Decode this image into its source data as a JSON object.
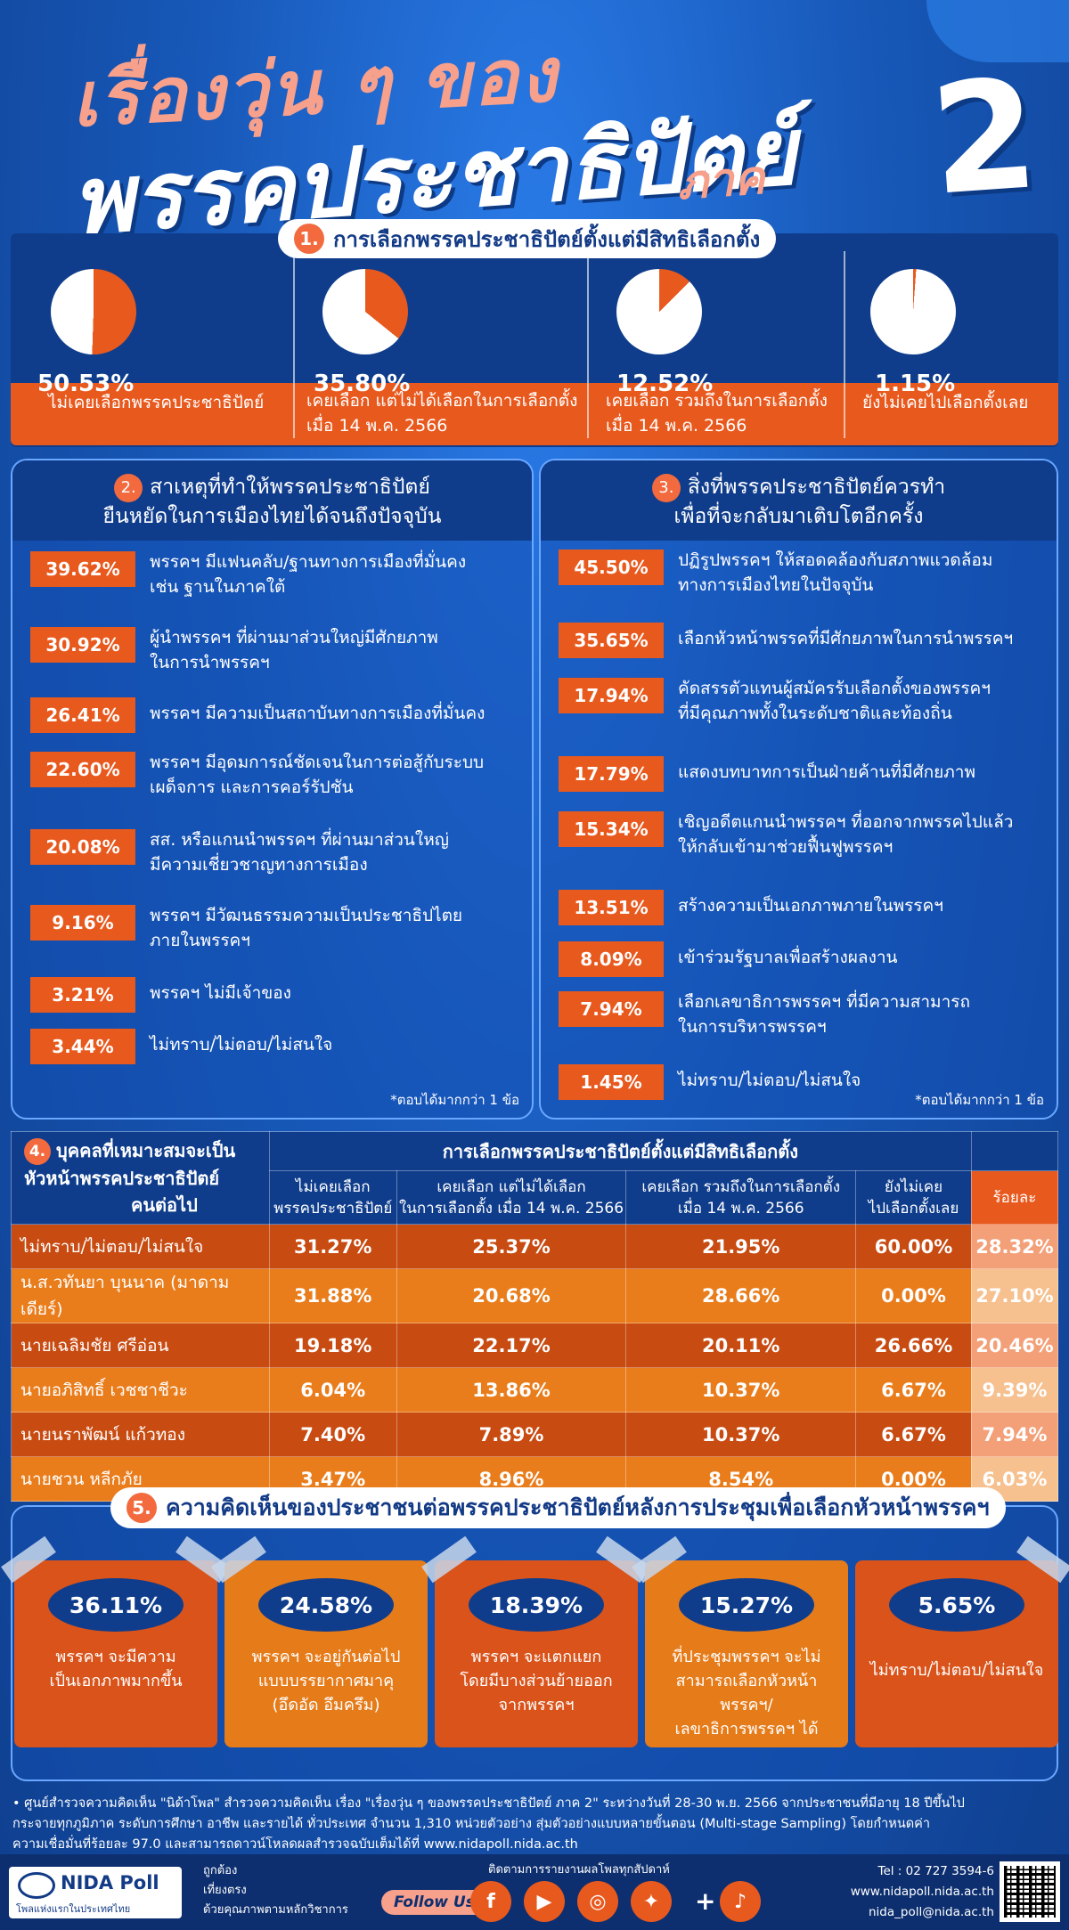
{
  "title": {
    "line1": "เรื่องวุ่น ๆ ของ",
    "line2": "พรรคประชาธิปัตย์",
    "line3": "ภาค",
    "number": "2"
  },
  "colors": {
    "accent": "#e8591e",
    "navy": "#0f3d8c",
    "blue": "#1b5fc0",
    "pink": "#f7a08c"
  },
  "s1": {
    "num": "1.",
    "title": "การเลือกพรรคประชาธิปัตย์ตั้งแต่มีสิทธิเลือกตั้ง",
    "items": [
      {
        "pct": "50.53%",
        "value": 50.53,
        "label": "ไม่เคยเลือกพรรคประชาธิปัตย์",
        "label2": ""
      },
      {
        "pct": "35.80%",
        "value": 35.8,
        "label": "เคยเลือก แต่ไม่ได้เลือกในการเลือกตั้ง",
        "label2": "เมื่อ 14 พ.ค. 2566"
      },
      {
        "pct": "12.52%",
        "value": 12.52,
        "label": "เคยเลือก รวมถึงในการเลือกตั้ง",
        "label2": "เมื่อ 14 พ.ค. 2566"
      },
      {
        "pct": "1.15%",
        "value": 1.15,
        "label": "ยังไม่เคยไปเลือกตั้งเลย",
        "label2": ""
      }
    ]
  },
  "s2": {
    "num": "2.",
    "title1": "สาเหตุที่ทำให้พรรคประชาธิปัตย์",
    "title2": "ยืนหยัดในการเมืองไทยได้จนถึงปัจจุบัน",
    "note": "*ตอบได้มากกว่า 1 ข้อ",
    "items": [
      {
        "pct": "39.62%",
        "l1": "พรรคฯ มีแฟนคลับ/ฐานทางการเมืองที่มั่นคง",
        "l2": "เช่น ฐานในภาคใต้"
      },
      {
        "pct": "30.92%",
        "l1": "ผู้นำพรรคฯ ที่ผ่านมาส่วนใหญ่มีศักยภาพ",
        "l2": "ในการนำพรรคฯ"
      },
      {
        "pct": "26.41%",
        "l1": "พรรคฯ มีความเป็นสถาบันทางการเมืองที่มั่นคง",
        "l2": ""
      },
      {
        "pct": "22.60%",
        "l1": "พรรคฯ มีอุดมการณ์ชัดเจนในการต่อสู้กับระบบ",
        "l2": "เผด็จการ และการคอร์รัปชัน"
      },
      {
        "pct": "20.08%",
        "l1": "สส. หรือแกนนำพรรคฯ ที่ผ่านมาส่วนใหญ่",
        "l2": "มีความเชี่ยวชาญทางการเมือง"
      },
      {
        "pct": "9.16%",
        "l1": "พรรคฯ มีวัฒนธรรมความเป็นประชาธิปไตย",
        "l2": "ภายในพรรคฯ"
      },
      {
        "pct": "3.21%",
        "l1": "พรรคฯ ไม่มีเจ้าของ",
        "l2": ""
      },
      {
        "pct": "3.44%",
        "l1": "ไม่ทราบ/ไม่ตอบ/ไม่สนใจ",
        "l2": ""
      }
    ]
  },
  "s3": {
    "num": "3.",
    "title1": "สิ่งที่พรรคประชาธิปัตย์ควรทำ",
    "title2": "เพื่อที่จะกลับมาเติบโตอีกครั้ง",
    "note": "*ตอบได้มากกว่า 1 ข้อ",
    "items": [
      {
        "pct": "45.50%",
        "l1": "ปฏิรูปพรรคฯ ให้สอดคล้องกับสภาพแวดล้อม",
        "l2": "ทางการเมืองไทยในปัจจุบัน"
      },
      {
        "pct": "35.65%",
        "l1": "เลือกหัวหน้าพรรคที่มีศักยภาพในการนำพรรคฯ",
        "l2": ""
      },
      {
        "pct": "17.94%",
        "l1": "คัดสรรตัวแทนผู้สมัครรับเลือกตั้งของพรรคฯ",
        "l2": "ที่มีคุณภาพทั้งในระดับชาติและท้องถิ่น"
      },
      {
        "pct": "17.79%",
        "l1": "แสดงบทบาทการเป็นฝ่ายค้านที่มีศักยภาพ",
        "l2": ""
      },
      {
        "pct": "15.34%",
        "l1": "เชิญอดีตแกนนำพรรคฯ ที่ออกจากพรรคไปแล้ว",
        "l2": "ให้กลับเข้ามาช่วยฟื้นฟูพรรคฯ"
      },
      {
        "pct": "13.51%",
        "l1": "สร้างความเป็นเอกภาพภายในพรรคฯ",
        "l2": ""
      },
      {
        "pct": "8.09%",
        "l1": "เข้าร่วมรัฐบาลเพื่อสร้างผลงาน",
        "l2": ""
      },
      {
        "pct": "7.94%",
        "l1": "เลือกเลขาธิการพรรคฯ ที่มีความสามารถ",
        "l2": "ในการบริหารพรรคฯ"
      },
      {
        "pct": "1.45%",
        "l1": "ไม่ทราบ/ไม่ตอบ/ไม่สนใจ",
        "l2": ""
      }
    ]
  },
  "s4": {
    "num": "4.",
    "corner1": "บุคคลที่เหมาะสมจะเป็น",
    "corner2": "หัวหน้าพรรคประชาธิปัตย์",
    "corner3": "คนต่อไป",
    "group": "การเลือกพรรคประชาธิปัตย์ตั้งแต่มีสิทธิเลือกตั้ง",
    "cols": [
      {
        "l1": "ไม่เคยเลือก",
        "l2": "พรรคประชาธิปัตย์"
      },
      {
        "l1": "เคยเลือก แต่ไม่ได้เลือก",
        "l2": "ในการเลือกตั้ง เมื่อ 14 พ.ค. 2566"
      },
      {
        "l1": "เคยเลือก รวมถึงในการเลือกตั้ง",
        "l2": "เมื่อ 14 พ.ค. 2566"
      },
      {
        "l1": "ยังไม่เคย",
        "l2": "ไปเลือกตั้งเลย"
      }
    ],
    "total_label": "ร้อยละ",
    "rows": [
      {
        "name": "ไม่ทราบ/ไม่ตอบ/ไม่สนใจ",
        "v": [
          "31.27%",
          "25.37%",
          "21.95%",
          "60.00%",
          "28.32%"
        ]
      },
      {
        "name": "น.ส.วทันยา บุนนาค (มาดามเดียร์)",
        "v": [
          "31.88%",
          "20.68%",
          "28.66%",
          "0.00%",
          "27.10%"
        ]
      },
      {
        "name": "นายเฉลิมชัย ศรีอ่อน",
        "v": [
          "19.18%",
          "22.17%",
          "20.11%",
          "26.66%",
          "20.46%"
        ]
      },
      {
        "name": "นายอภิสิทธิ์ เวชชาชีวะ",
        "v": [
          "6.04%",
          "13.86%",
          "10.37%",
          "6.67%",
          "9.39%"
        ]
      },
      {
        "name": "นายนราพัฒน์ แก้วทอง",
        "v": [
          "7.40%",
          "7.89%",
          "10.37%",
          "6.67%",
          "7.94%"
        ]
      },
      {
        "name": "นายชวน หลีกภัย",
        "v": [
          "3.47%",
          "8.96%",
          "8.54%",
          "0.00%",
          "6.03%"
        ]
      }
    ]
  },
  "s5": {
    "num": "5.",
    "title": "ความคิดเห็นของประชาชนต่อพรรคประชาธิปัตย์หลังการประชุมเพื่อเลือกหัวหน้าพรรคฯ",
    "cards": [
      {
        "pct": "36.11%",
        "l1": "พรรคฯ จะมีความ",
        "l2": "เป็นเอกภาพมากขึ้น",
        "l3": ""
      },
      {
        "pct": "24.58%",
        "l1": "พรรคฯ จะอยู่กันต่อไป",
        "l2": "แบบบรรยากาศมาคุ",
        "l3": "(อึดอัด อึมครึม)"
      },
      {
        "pct": "18.39%",
        "l1": "พรรคฯ จะแตกแยก",
        "l2": "โดยมีบางส่วนย้ายออก",
        "l3": "จากพรรคฯ"
      },
      {
        "pct": "15.27%",
        "l1": "ที่ประชุมพรรคฯ จะไม่",
        "l2": "สามารถเลือกหัวหน้าพรรคฯ/",
        "l3": "เลขาธิการพรรคฯ ได้"
      },
      {
        "pct": "5.65%",
        "l1": "ไม่ทราบ/ไม่ตอบ/ไม่สนใจ",
        "l2": "",
        "l3": ""
      }
    ]
  },
  "footnote": {
    "l1": "• ศูนย์สำรวจความคิดเห็น \"นิด้าโพล\" สำรวจความคิดเห็น เรื่อง \"เรื่องวุ่น ๆ ของพรรคประชาธิปัตย์ ภาค 2\" ระหว่างวันที่ 28-30 พ.ย. 2566 จากประชาชนที่มีอายุ 18 ปีขึ้นไป",
    "l2": "กระจายทุกภูมิภาค ระดับการศึกษา อาชีพ และรายได้ ทั่วประเทศ จำนวน 1,310 หน่วยตัวอย่าง สุ่มตัวอย่างแบบหลายขั้นตอน (Multi-stage Sampling) โดยกำหนดค่า",
    "l3": "ความเชื่อมั่นที่ร้อยละ 97.0 และสามารถดาวน์โหลดผลสำรวจฉบับเต็มได้ที่ www.nidapoll.nida.ac.th"
  },
  "footer": {
    "logo": "NIDA Poll",
    "tagline": "โพลแห่งแรกในประเทศไทย",
    "slogan1": "ถูกต้อง",
    "slogan2": "เที่ยงตรง",
    "slogan3": "ด้วยคุณภาพตามหลักวิชาการ",
    "follow": "Follow Us",
    "follow_text": "ติดตามการรายงานผลโพลทุกสัปดาห์",
    "social": [
      {
        "icon": "facebook-icon",
        "glyph": "f"
      },
      {
        "icon": "youtube-icon",
        "glyph": "▶"
      },
      {
        "icon": "instagram-icon",
        "glyph": "◎"
      },
      {
        "icon": "twitter-icon",
        "glyph": "✦"
      },
      {
        "icon": "tiktok-icon",
        "glyph": "♪"
      }
    ],
    "plus": "+",
    "tel": "Tel : 02 727 3594-6",
    "web": "www.nidapoll.nida.ac.th",
    "email": "nida_poll@nida.ac.th"
  }
}
